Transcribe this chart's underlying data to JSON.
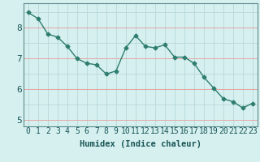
{
  "x": [
    0,
    1,
    2,
    3,
    4,
    5,
    6,
    7,
    8,
    9,
    10,
    11,
    12,
    13,
    14,
    15,
    16,
    17,
    18,
    19,
    20,
    21,
    22,
    23
  ],
  "y": [
    8.5,
    8.3,
    7.8,
    7.7,
    7.4,
    7.0,
    6.85,
    6.8,
    6.5,
    6.6,
    7.35,
    7.75,
    7.4,
    7.35,
    7.45,
    7.05,
    7.05,
    6.85,
    6.4,
    6.05,
    5.7,
    5.6,
    5.4,
    5.55
  ],
  "line_color": "#2e7d6e",
  "marker": "D",
  "marker_size": 2.5,
  "bg_color": "#d6f0f0",
  "grid_color_minor": "#b8d8d8",
  "grid_color_major": "#e89898",
  "xlabel": "Humidex (Indice chaleur)",
  "xlim": [
    -0.5,
    23.5
  ],
  "ylim": [
    4.8,
    8.8
  ],
  "yticks": [
    5,
    6,
    7,
    8
  ],
  "yticks_minor": [
    5.5,
    6.5,
    7.5,
    8.5
  ],
  "xticks": [
    0,
    1,
    2,
    3,
    4,
    5,
    6,
    7,
    8,
    9,
    10,
    11,
    12,
    13,
    14,
    15,
    16,
    17,
    18,
    19,
    20,
    21,
    22,
    23
  ],
  "xlabel_fontsize": 7.5,
  "tick_fontsize": 7,
  "line_width": 1.0
}
